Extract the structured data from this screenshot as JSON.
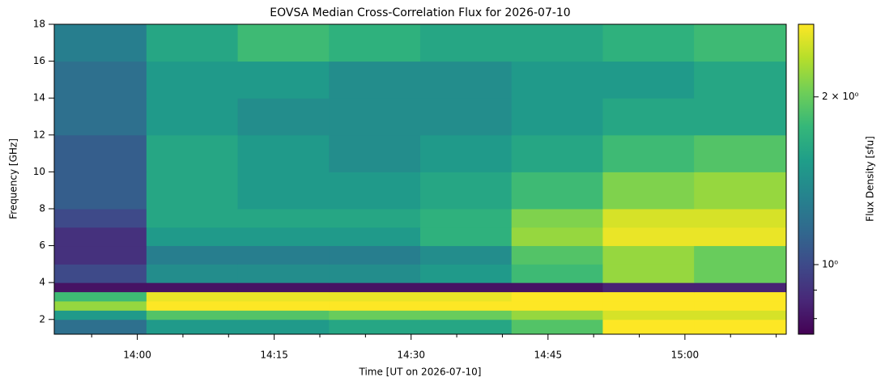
{
  "chart_data": {
    "type": "heatmap",
    "title": "EOVSA Median Cross-Correlation Flux for 2026-07-10",
    "x_label": "Time [UT on 2026-07-10]",
    "y_label": "Frequency [GHz]",
    "colorbar_label": "Flux Density [sfu]",
    "colormap": "viridis",
    "color_scale": "log",
    "xlim": [
      830.9,
      911.1
    ],
    "xticks": [
      {
        "value": 840,
        "label": "14:00"
      },
      {
        "value": 855,
        "label": "14:15"
      },
      {
        "value": 870,
        "label": "14:30"
      },
      {
        "value": 885,
        "label": "14:45"
      },
      {
        "value": 900,
        "label": "15:00"
      }
    ],
    "xminorticks": [
      835,
      845,
      850,
      860,
      865,
      875,
      880,
      890,
      895,
      905,
      910
    ],
    "ylim": [
      1.2,
      18
    ],
    "yticks": [
      2,
      4,
      6,
      8,
      10,
      12,
      14,
      16,
      18
    ],
    "clim": [
      0.75,
      2.7
    ],
    "cticks": [
      {
        "value": 1,
        "label": "10⁰"
      },
      {
        "value": 2,
        "label": "2 × 10⁰"
      }
    ],
    "cminorticks": [
      0.8,
      0.9
    ],
    "x_edges": [
      830.9,
      841,
      851,
      861,
      871,
      881,
      891,
      901,
      911.1
    ],
    "y_edges": [
      1.2,
      2,
      2.5,
      3,
      3.5,
      4,
      5,
      6,
      7,
      8,
      10,
      12,
      14,
      16,
      18
    ],
    "values": [
      [
        1.2,
        1.5,
        1.5,
        1.6,
        1.6,
        1.9,
        2.7,
        2.7
      ],
      [
        1.5,
        1.9,
        1.9,
        2.0,
        2.0,
        2.2,
        2.5,
        2.5
      ],
      [
        2.2,
        2.7,
        2.7,
        2.7,
        2.7,
        2.7,
        2.7,
        2.7
      ],
      [
        1.8,
        2.6,
        2.6,
        2.6,
        2.6,
        2.7,
        2.7,
        2.7
      ],
      [
        0.8,
        0.8,
        0.8,
        0.8,
        0.8,
        0.8,
        0.85,
        0.85
      ],
      [
        1.0,
        1.4,
        1.4,
        1.4,
        1.5,
        1.8,
        2.2,
        2.0
      ],
      [
        0.9,
        1.3,
        1.3,
        1.3,
        1.4,
        1.9,
        2.2,
        2.0
      ],
      [
        0.9,
        1.5,
        1.5,
        1.5,
        1.7,
        2.2,
        2.6,
        2.6
      ],
      [
        1.0,
        1.6,
        1.6,
        1.6,
        1.7,
        2.1,
        2.5,
        2.5
      ],
      [
        1.1,
        1.6,
        1.5,
        1.5,
        1.6,
        1.8,
        2.1,
        2.2
      ],
      [
        1.1,
        1.6,
        1.5,
        1.4,
        1.5,
        1.6,
        1.8,
        1.9
      ],
      [
        1.2,
        1.5,
        1.4,
        1.4,
        1.4,
        1.5,
        1.6,
        1.6
      ],
      [
        1.2,
        1.5,
        1.5,
        1.4,
        1.4,
        1.5,
        1.5,
        1.6
      ],
      [
        1.3,
        1.6,
        1.8,
        1.7,
        1.6,
        1.6,
        1.7,
        1.8
      ]
    ]
  }
}
